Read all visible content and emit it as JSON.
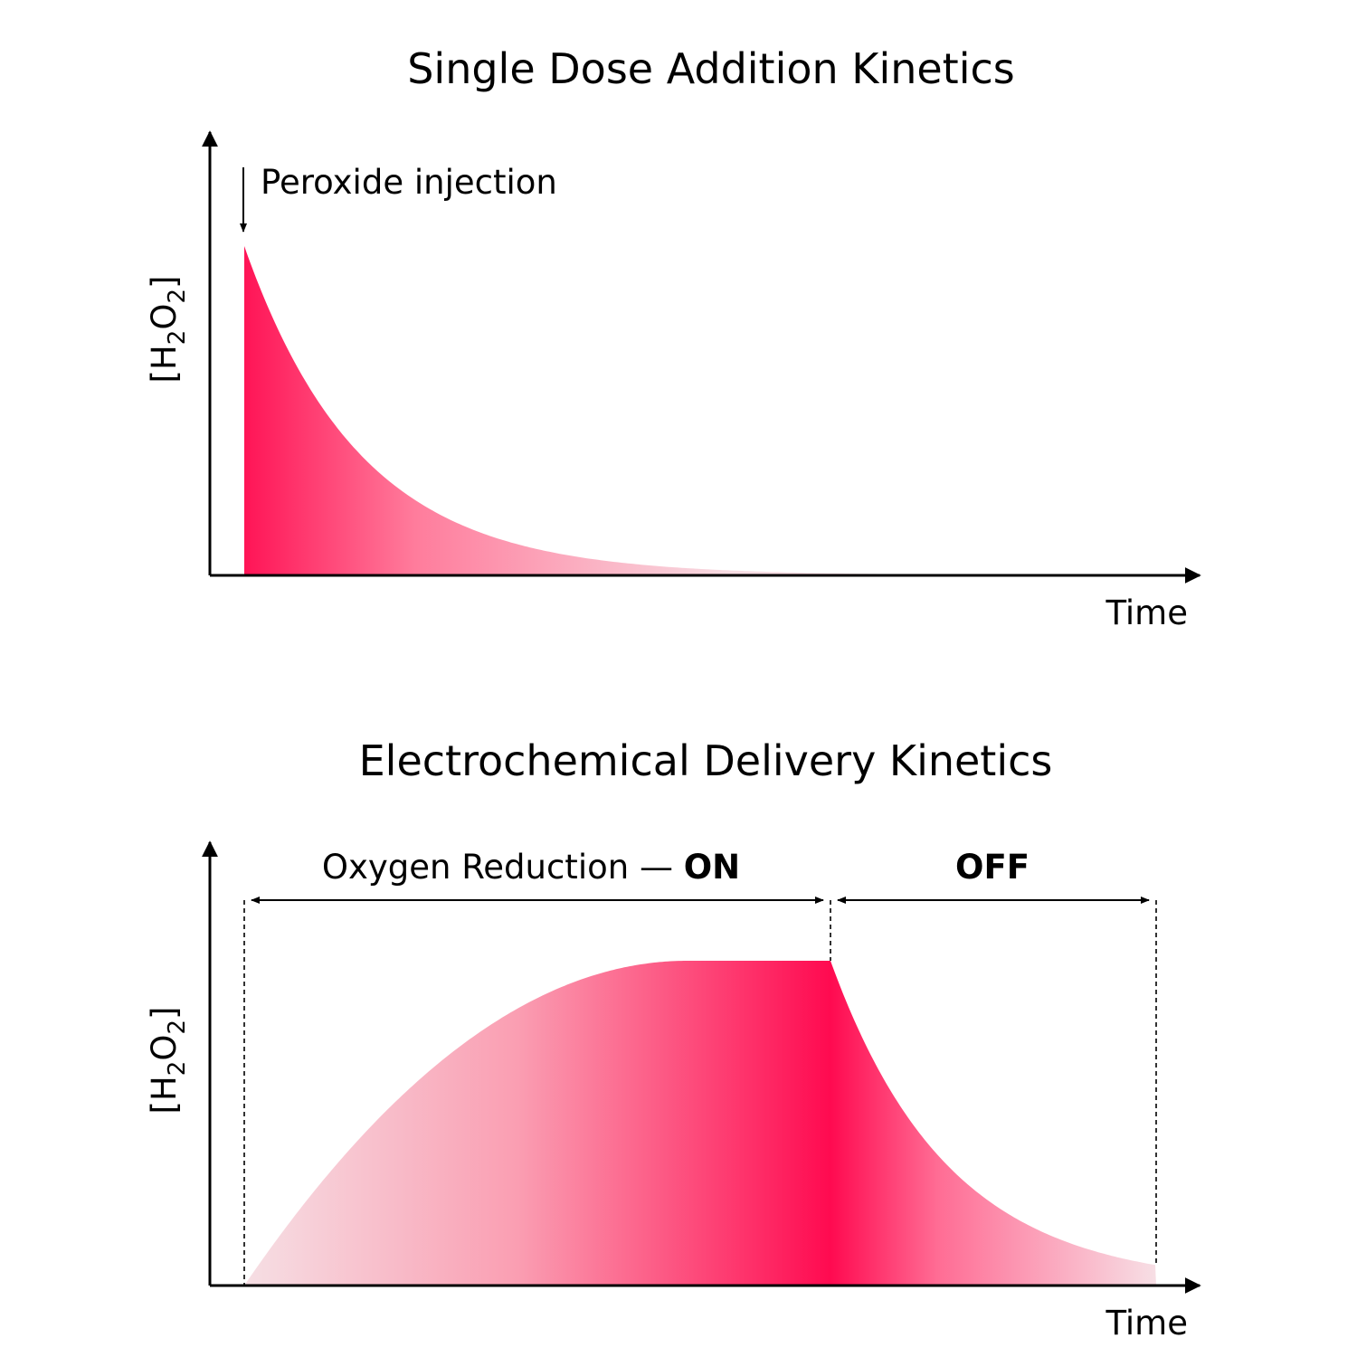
{
  "panels": [
    {
      "title": "Single Dose Addition Kinetics",
      "annotation": "Peroxide injection",
      "y_label": {
        "parts": [
          "[H",
          "2",
          "O",
          "2",
          "]"
        ]
      },
      "x_label": "Time"
    },
    {
      "title": "Electrochemical Delivery Kinetics",
      "phases": [
        {
          "label": "Oxygen Reduction — ",
          "emphasis": "ON"
        },
        {
          "label": "OFF"
        }
      ],
      "y_label": {
        "parts": [
          "[H",
          "2",
          "O",
          "2",
          "]"
        ]
      },
      "x_label": "Time"
    }
  ]
}
